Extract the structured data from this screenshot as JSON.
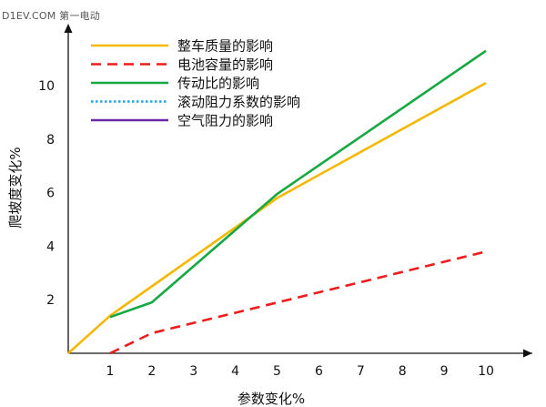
{
  "watermark": "D1EV.COM 第一电动",
  "chart_data": {
    "type": "line",
    "title": "",
    "xlabel": "参数变化%",
    "ylabel": "爬坡度变化%",
    "xlim": [
      0,
      10.7
    ],
    "ylim": [
      0,
      11.5
    ],
    "x_ticks": [
      "1",
      "2",
      "3",
      "4",
      "5",
      "6",
      "7",
      "8",
      "9",
      "10"
    ],
    "y_ticks": [
      "2",
      "4",
      "6",
      "8",
      "10"
    ],
    "grid": false,
    "legend_position": "top-left",
    "series": [
      {
        "name": "整车质量的影响",
        "color": "#f5b800",
        "dash": "solid",
        "x": [
          0,
          1,
          2,
          5,
          10
        ],
        "y": [
          0,
          1.4,
          2.5,
          5.8,
          10.1
        ]
      },
      {
        "name": "电池容量的影响",
        "color": "#ee1c1c",
        "dash": "dashed",
        "x": [
          1,
          2,
          10
        ],
        "y": [
          0,
          0.75,
          3.8
        ]
      },
      {
        "name": "传动比的影响",
        "color": "#16a843",
        "dash": "solid",
        "x": [
          1,
          2,
          5,
          10
        ],
        "y": [
          1.35,
          1.9,
          5.95,
          11.3
        ]
      },
      {
        "name": "滚动阻力系数的影响",
        "color": "#1aa3e8",
        "dash": "dotted",
        "x": [],
        "y": []
      },
      {
        "name": "空气阻力的影响",
        "color": "#6a2aa8",
        "dash": "solid",
        "x": [],
        "y": []
      }
    ]
  }
}
